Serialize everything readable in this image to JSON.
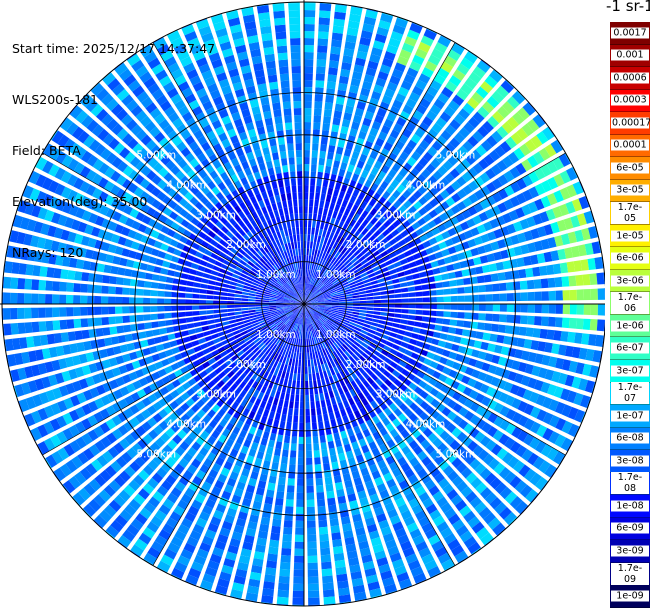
{
  "header": {
    "start_time": "Start time: 2025/12/17 14:37:47",
    "instrument": "WLS200s-181",
    "field": "Field: BETA",
    "elevation": "Elevation(deg): 35.00",
    "nrays": "NRays: 120"
  },
  "colorbar": {
    "title": "-1 sr-1",
    "ticks": [
      "0.0017",
      "0.001",
      "0.0006",
      "0.0003",
      "0.00017",
      "0.0001",
      "6e-05",
      "3e-05",
      "1.7e-05",
      "1e-05",
      "6e-06",
      "3e-06",
      "1.7e-06",
      "1e-06",
      "6e-07",
      "3e-07",
      "1.7e-07",
      "1e-07",
      "6e-08",
      "3e-08",
      "1.7e-08",
      "1e-08",
      "6e-09",
      "3e-09",
      "1.7e-09",
      "1e-09"
    ],
    "colors": [
      "#7f0000",
      "#a00000",
      "#c80000",
      "#ff0000",
      "#ff3c00",
      "#ff6a00",
      "#ff8c00",
      "#ffae00",
      "#ffd000",
      "#fff000",
      "#e6ff12",
      "#baff3c",
      "#8cff6a",
      "#5eff98",
      "#30ffc6",
      "#00ffee",
      "#00d4ff",
      "#00a8ff",
      "#0080ff",
      "#0058ff",
      "#0030ff",
      "#0008ff",
      "#0000e0",
      "#0000b4",
      "#000088",
      "#00005c"
    ]
  },
  "chart_data": {
    "type": "heatmap",
    "projection": "polar PPI",
    "field": "BETA",
    "elevation_deg": 35.0,
    "nrays": 120,
    "range_rings_km": [
      1.0,
      2.0,
      3.0,
      4.0,
      5.0
    ],
    "range_labels": [
      "1.00km",
      "2.00km",
      "3.00km",
      "4.00km",
      "5.00km"
    ],
    "scale": "log",
    "vmin": 1e-09,
    "vmax": 0.0017
  }
}
